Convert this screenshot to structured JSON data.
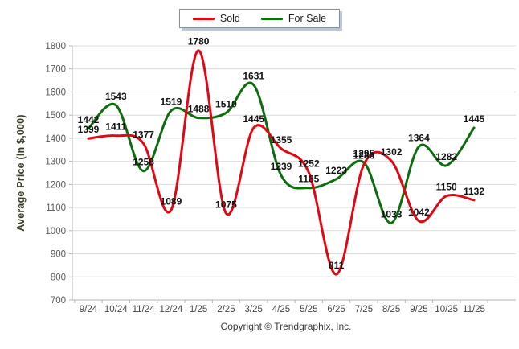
{
  "legend": {
    "items": [
      {
        "label": "Sold",
        "color": "#e30613"
      },
      {
        "label": "For Sale",
        "color": "#0b6e0b"
      }
    ]
  },
  "y_axis": {
    "title": "Average Price (in $,000)",
    "min": 700,
    "max": 1800,
    "step": 100
  },
  "footer": {
    "copyright": "Copyright © Trendgraphix, Inc."
  },
  "chart_data": {
    "type": "line",
    "title": "",
    "xlabel": "",
    "ylabel": "Average Price (in $,000)",
    "ylim": [
      700,
      1800
    ],
    "grid": true,
    "legend_position": "top",
    "line_style": "smooth-spline",
    "categories": [
      "9/24",
      "10/24",
      "11/24",
      "12/24",
      "1/25",
      "2/25",
      "3/25",
      "4/25",
      "5/25",
      "6/25",
      "7/25",
      "8/25",
      "9/25",
      "10/25",
      "11/25"
    ],
    "series": [
      {
        "name": "Sold",
        "color": "#e30613",
        "values": [
          1399,
          1411,
          1377,
          1089,
          1780,
          1075,
          1445,
          1355,
          1252,
          811,
          1286,
          1302,
          1042,
          1150,
          1132
        ]
      },
      {
        "name": "For Sale",
        "color": "#0b6e0b",
        "values": [
          1442,
          1543,
          1258,
          1519,
          1488,
          1510,
          1631,
          1239,
          1185,
          1223,
          1295,
          1033,
          1364,
          1282,
          1445
        ]
      }
    ],
    "colors": {
      "gridline": "#dcdcdc",
      "axis": "#b3b3b3",
      "tick_label": "#5a5a5a",
      "category_label": "#454545",
      "data_label": "#121212"
    }
  }
}
